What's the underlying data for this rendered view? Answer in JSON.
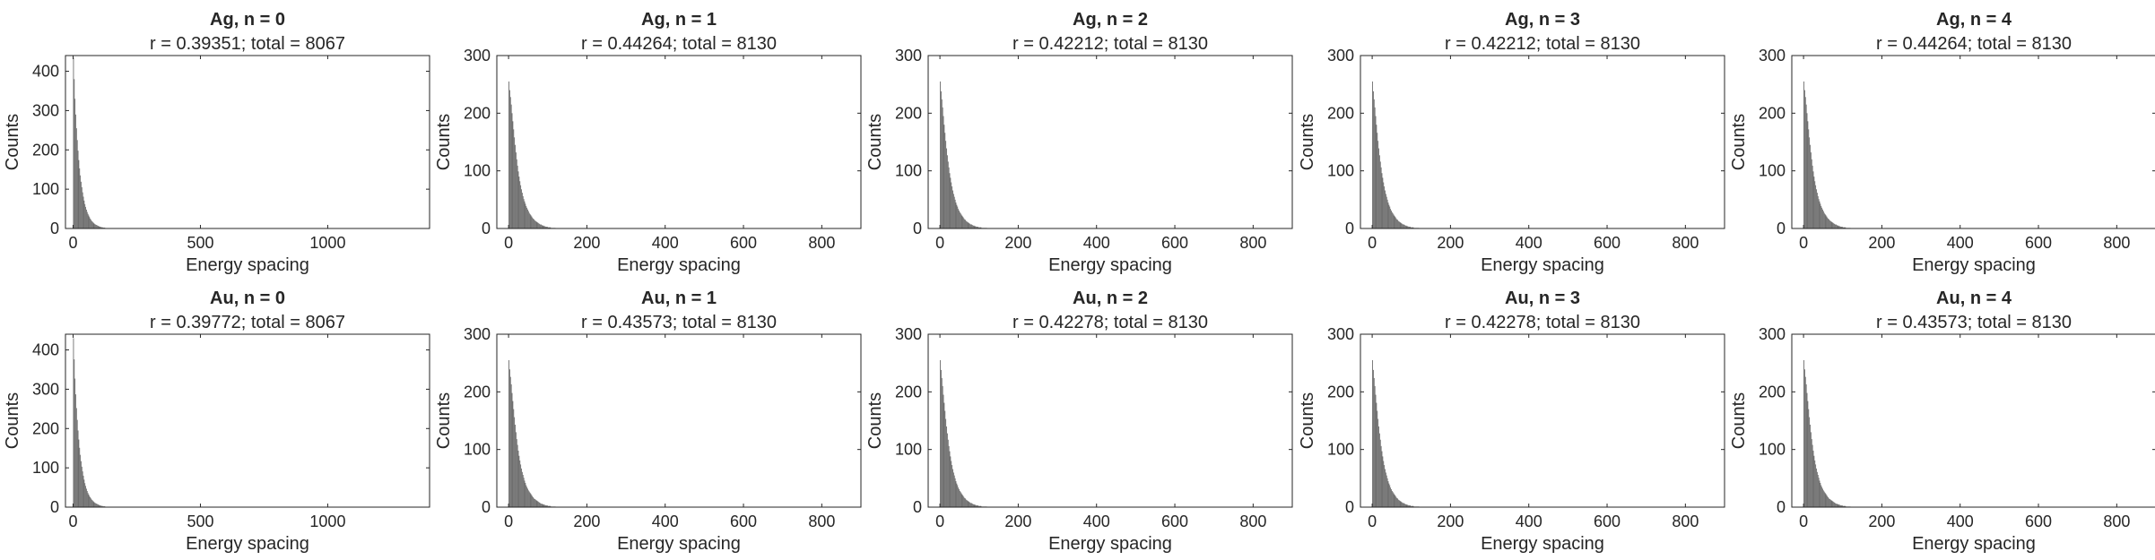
{
  "figure": {
    "bar_color": "#696969",
    "axis_color": "#262626"
  },
  "chart_data": [
    {
      "type": "bar",
      "title": "Ag, n = 0",
      "subtitle": "r = 0.39351; total = 8067",
      "xlabel": "Energy spacing",
      "ylabel": "Counts",
      "xlim": [
        -30,
        1400
      ],
      "ylim": [
        0,
        440
      ],
      "xticks": [
        0,
        500,
        1000
      ],
      "yticks": [
        0,
        100,
        200,
        300,
        400
      ],
      "bin_width": 3,
      "x_start": 0,
      "values": [
        435,
        380,
        330,
        290,
        255,
        225,
        198,
        174,
        153,
        135,
        119,
        105,
        92,
        81,
        71,
        62,
        55,
        48,
        42,
        37,
        33,
        29,
        25,
        22,
        19,
        17,
        15,
        13,
        11,
        10,
        9,
        8,
        7,
        6,
        5,
        4,
        4,
        3,
        3,
        2,
        2,
        2,
        1,
        1,
        1,
        1
      ]
    },
    {
      "type": "bar",
      "title": "Ag, n = 1",
      "subtitle": "r = 0.44264; total = 8130",
      "xlabel": "Energy spacing",
      "ylabel": "Counts",
      "xlim": [
        -30,
        900
      ],
      "ylim": [
        0,
        300
      ],
      "xticks": [
        0,
        200,
        400,
        600,
        800
      ],
      "yticks": [
        0,
        100,
        200,
        300
      ],
      "bin_width": 2,
      "x_start": 0,
      "values": [
        255,
        240,
        228,
        215,
        200,
        186,
        172,
        158,
        145,
        132,
        120,
        109,
        99,
        90,
        82,
        75,
        68,
        62,
        56,
        51,
        47,
        43,
        39,
        36,
        33,
        30,
        27,
        25,
        23,
        21,
        19,
        17,
        16,
        14,
        13,
        12,
        11,
        10,
        9,
        8,
        7,
        7,
        6,
        5,
        5,
        4,
        4,
        3,
        3,
        3,
        2,
        2,
        2,
        2,
        1,
        1,
        1,
        1,
        1,
        1
      ]
    },
    {
      "type": "bar",
      "title": "Ag, n = 2",
      "subtitle": "r = 0.42212; total = 8130",
      "xlabel": "Energy spacing",
      "ylabel": "Counts",
      "xlim": [
        -30,
        900
      ],
      "ylim": [
        0,
        300
      ],
      "xticks": [
        0,
        200,
        400,
        600,
        800
      ],
      "yticks": [
        0,
        100,
        200,
        300
      ],
      "bin_width": 2,
      "x_start": 0,
      "values": [
        255,
        238,
        224,
        210,
        195,
        180,
        166,
        152,
        139,
        127,
        116,
        106,
        96,
        88,
        80,
        73,
        66,
        60,
        55,
        50,
        45,
        41,
        38,
        34,
        31,
        28,
        26,
        24,
        22,
        20,
        18,
        16,
        15,
        13,
        12,
        11,
        10,
        9,
        8,
        7,
        7,
        6,
        5,
        5,
        4,
        4,
        3,
        3,
        3,
        2,
        2,
        2,
        2,
        1,
        1,
        1,
        1,
        1,
        1,
        1
      ]
    },
    {
      "type": "bar",
      "title": "Ag, n = 3",
      "subtitle": "r = 0.42212; total = 8130",
      "xlabel": "Energy spacing",
      "ylabel": "Counts",
      "xlim": [
        -30,
        900
      ],
      "ylim": [
        0,
        300
      ],
      "xticks": [
        0,
        200,
        400,
        600,
        800
      ],
      "yticks": [
        0,
        100,
        200,
        300
      ],
      "bin_width": 2,
      "x_start": 0,
      "values": [
        255,
        238,
        224,
        210,
        195,
        180,
        166,
        152,
        139,
        127,
        116,
        106,
        96,
        88,
        80,
        73,
        66,
        60,
        55,
        50,
        45,
        41,
        38,
        34,
        31,
        28,
        26,
        24,
        22,
        20,
        18,
        16,
        15,
        13,
        12,
        11,
        10,
        9,
        8,
        7,
        7,
        6,
        5,
        5,
        4,
        4,
        3,
        3,
        3,
        2,
        2,
        2,
        2,
        1,
        1,
        1,
        1,
        1,
        1,
        1
      ]
    },
    {
      "type": "bar",
      "title": "Ag, n = 4",
      "subtitle": "r = 0.44264; total = 8130",
      "xlabel": "Energy spacing",
      "ylabel": "Counts",
      "xlim": [
        -30,
        900
      ],
      "ylim": [
        0,
        300
      ],
      "xticks": [
        0,
        200,
        400,
        600,
        800
      ],
      "yticks": [
        0,
        100,
        200,
        300
      ],
      "bin_width": 2,
      "x_start": 0,
      "values": [
        255,
        240,
        228,
        215,
        200,
        186,
        172,
        158,
        145,
        132,
        120,
        109,
        99,
        90,
        82,
        75,
        68,
        62,
        56,
        51,
        47,
        43,
        39,
        36,
        33,
        30,
        27,
        25,
        23,
        21,
        19,
        17,
        16,
        14,
        13,
        12,
        11,
        10,
        9,
        8,
        7,
        7,
        6,
        5,
        5,
        4,
        4,
        3,
        3,
        3,
        2,
        2,
        2,
        2,
        1,
        1,
        1,
        1,
        1,
        1
      ]
    },
    {
      "type": "bar",
      "title": "Au, n = 0",
      "subtitle": "r = 0.39772; total = 8067",
      "xlabel": "Energy spacing",
      "ylabel": "Counts",
      "xlim": [
        -30,
        1400
      ],
      "ylim": [
        0,
        440
      ],
      "xticks": [
        0,
        500,
        1000
      ],
      "yticks": [
        0,
        100,
        200,
        300,
        400
      ],
      "bin_width": 3,
      "x_start": 0,
      "values": [
        430,
        376,
        327,
        287,
        252,
        222,
        195,
        172,
        151,
        133,
        117,
        103,
        91,
        80,
        70,
        61,
        54,
        47,
        41,
        36,
        32,
        28,
        25,
        22,
        19,
        17,
        15,
        13,
        11,
        10,
        9,
        8,
        7,
        6,
        5,
        4,
        4,
        3,
        3,
        2,
        2,
        2,
        1,
        1,
        1,
        1
      ]
    },
    {
      "type": "bar",
      "title": "Au, n = 1",
      "subtitle": "r = 0.43573; total = 8130",
      "xlabel": "Energy spacing",
      "ylabel": "Counts",
      "xlim": [
        -30,
        900
      ],
      "ylim": [
        0,
        300
      ],
      "xticks": [
        0,
        200,
        400,
        600,
        800
      ],
      "yticks": [
        0,
        100,
        200,
        300
      ],
      "bin_width": 2,
      "x_start": 0,
      "values": [
        255,
        239,
        226,
        213,
        198,
        184,
        170,
        156,
        143,
        130,
        118,
        108,
        98,
        89,
        81,
        74,
        67,
        61,
        56,
        51,
        46,
        42,
        38,
        35,
        32,
        29,
        27,
        25,
        23,
        21,
        19,
        17,
        15,
        14,
        13,
        12,
        11,
        10,
        9,
        8,
        7,
        6,
        6,
        5,
        5,
        4,
        4,
        3,
        3,
        3,
        2,
        2,
        2,
        2,
        1,
        1,
        1,
        1,
        1,
        1
      ]
    },
    {
      "type": "bar",
      "title": "Au, n = 2",
      "subtitle": "r = 0.42278; total = 8130",
      "xlabel": "Energy spacing",
      "ylabel": "Counts",
      "xlim": [
        -30,
        900
      ],
      "ylim": [
        0,
        300
      ],
      "xticks": [
        0,
        200,
        400,
        600,
        800
      ],
      "yticks": [
        0,
        100,
        200,
        300
      ],
      "bin_width": 2,
      "x_start": 0,
      "values": [
        255,
        238,
        224,
        210,
        195,
        181,
        167,
        153,
        140,
        128,
        117,
        106,
        97,
        88,
        80,
        73,
        66,
        60,
        55,
        50,
        45,
        41,
        38,
        34,
        31,
        28,
        26,
        24,
        22,
        20,
        18,
        16,
        15,
        13,
        12,
        11,
        10,
        9,
        8,
        7,
        7,
        6,
        5,
        5,
        4,
        4,
        3,
        3,
        3,
        2,
        2,
        2,
        2,
        1,
        1,
        1,
        1,
        1,
        1,
        1
      ]
    },
    {
      "type": "bar",
      "title": "Au, n = 3",
      "subtitle": "r = 0.42278; total = 8130",
      "xlabel": "Energy spacing",
      "ylabel": "Counts",
      "xlim": [
        -30,
        900
      ],
      "ylim": [
        0,
        300
      ],
      "xticks": [
        0,
        200,
        400,
        600,
        800
      ],
      "yticks": [
        0,
        100,
        200,
        300
      ],
      "bin_width": 2,
      "x_start": 0,
      "values": [
        255,
        238,
        224,
        210,
        195,
        181,
        167,
        153,
        140,
        128,
        117,
        106,
        97,
        88,
        80,
        73,
        66,
        60,
        55,
        50,
        45,
        41,
        38,
        34,
        31,
        28,
        26,
        24,
        22,
        20,
        18,
        16,
        15,
        13,
        12,
        11,
        10,
        9,
        8,
        7,
        7,
        6,
        5,
        5,
        4,
        4,
        3,
        3,
        3,
        2,
        2,
        2,
        2,
        1,
        1,
        1,
        1,
        1,
        1,
        1
      ]
    },
    {
      "type": "bar",
      "title": "Au, n = 4",
      "subtitle": "r = 0.43573; total = 8130",
      "xlabel": "Energy spacing",
      "ylabel": "Counts",
      "xlim": [
        -30,
        900
      ],
      "ylim": [
        0,
        300
      ],
      "xticks": [
        0,
        200,
        400,
        600,
        800
      ],
      "yticks": [
        0,
        100,
        200,
        300
      ],
      "bin_width": 2,
      "x_start": 0,
      "values": [
        255,
        239,
        226,
        213,
        198,
        184,
        170,
        156,
        143,
        130,
        118,
        108,
        98,
        89,
        81,
        74,
        67,
        61,
        56,
        51,
        46,
        42,
        38,
        35,
        32,
        29,
        27,
        25,
        23,
        21,
        19,
        17,
        15,
        14,
        13,
        12,
        11,
        10,
        9,
        8,
        7,
        6,
        6,
        5,
        5,
        4,
        4,
        3,
        3,
        3,
        2,
        2,
        2,
        2,
        1,
        1,
        1,
        1,
        1,
        1
      ]
    }
  ]
}
